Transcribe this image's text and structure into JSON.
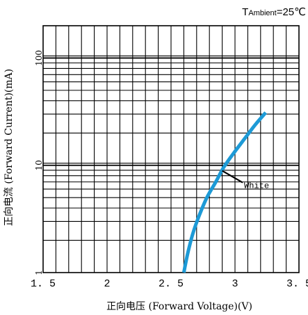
{
  "chart_data": {
    "type": "line",
    "title": "",
    "annotation_prefix": "T",
    "annotation_sub": "Ambient",
    "annotation_value": "=25℃",
    "xlabel": "正向电压 (Forward Voltage)(V)",
    "ylabel": "正向电流 (Forward Current)(mA)",
    "xlim": [
      1.5,
      3.5
    ],
    "ylim": [
      1,
      200
    ],
    "yscale": "log",
    "grid": true,
    "x_ticks": [
      1.5,
      2,
      2.5,
      3,
      3.5
    ],
    "x_tick_labels": [
      "1. 5",
      "2",
      "2. 5",
      "3",
      "3. 5"
    ],
    "y_ticks": [
      1,
      10,
      100
    ],
    "y_tick_labels": [
      "1",
      "10",
      "100"
    ],
    "series": [
      {
        "name": "White",
        "color": "#1d9ad6",
        "x": [
          2.6,
          2.63,
          2.67,
          2.72,
          2.78,
          2.85,
          2.91,
          2.99,
          3.08,
          3.16,
          3.24
        ],
        "y": [
          1,
          1.5,
          2.3,
          3.4,
          5.0,
          7.0,
          9.5,
          13.0,
          18.0,
          24.0,
          31.0
        ]
      }
    ]
  }
}
